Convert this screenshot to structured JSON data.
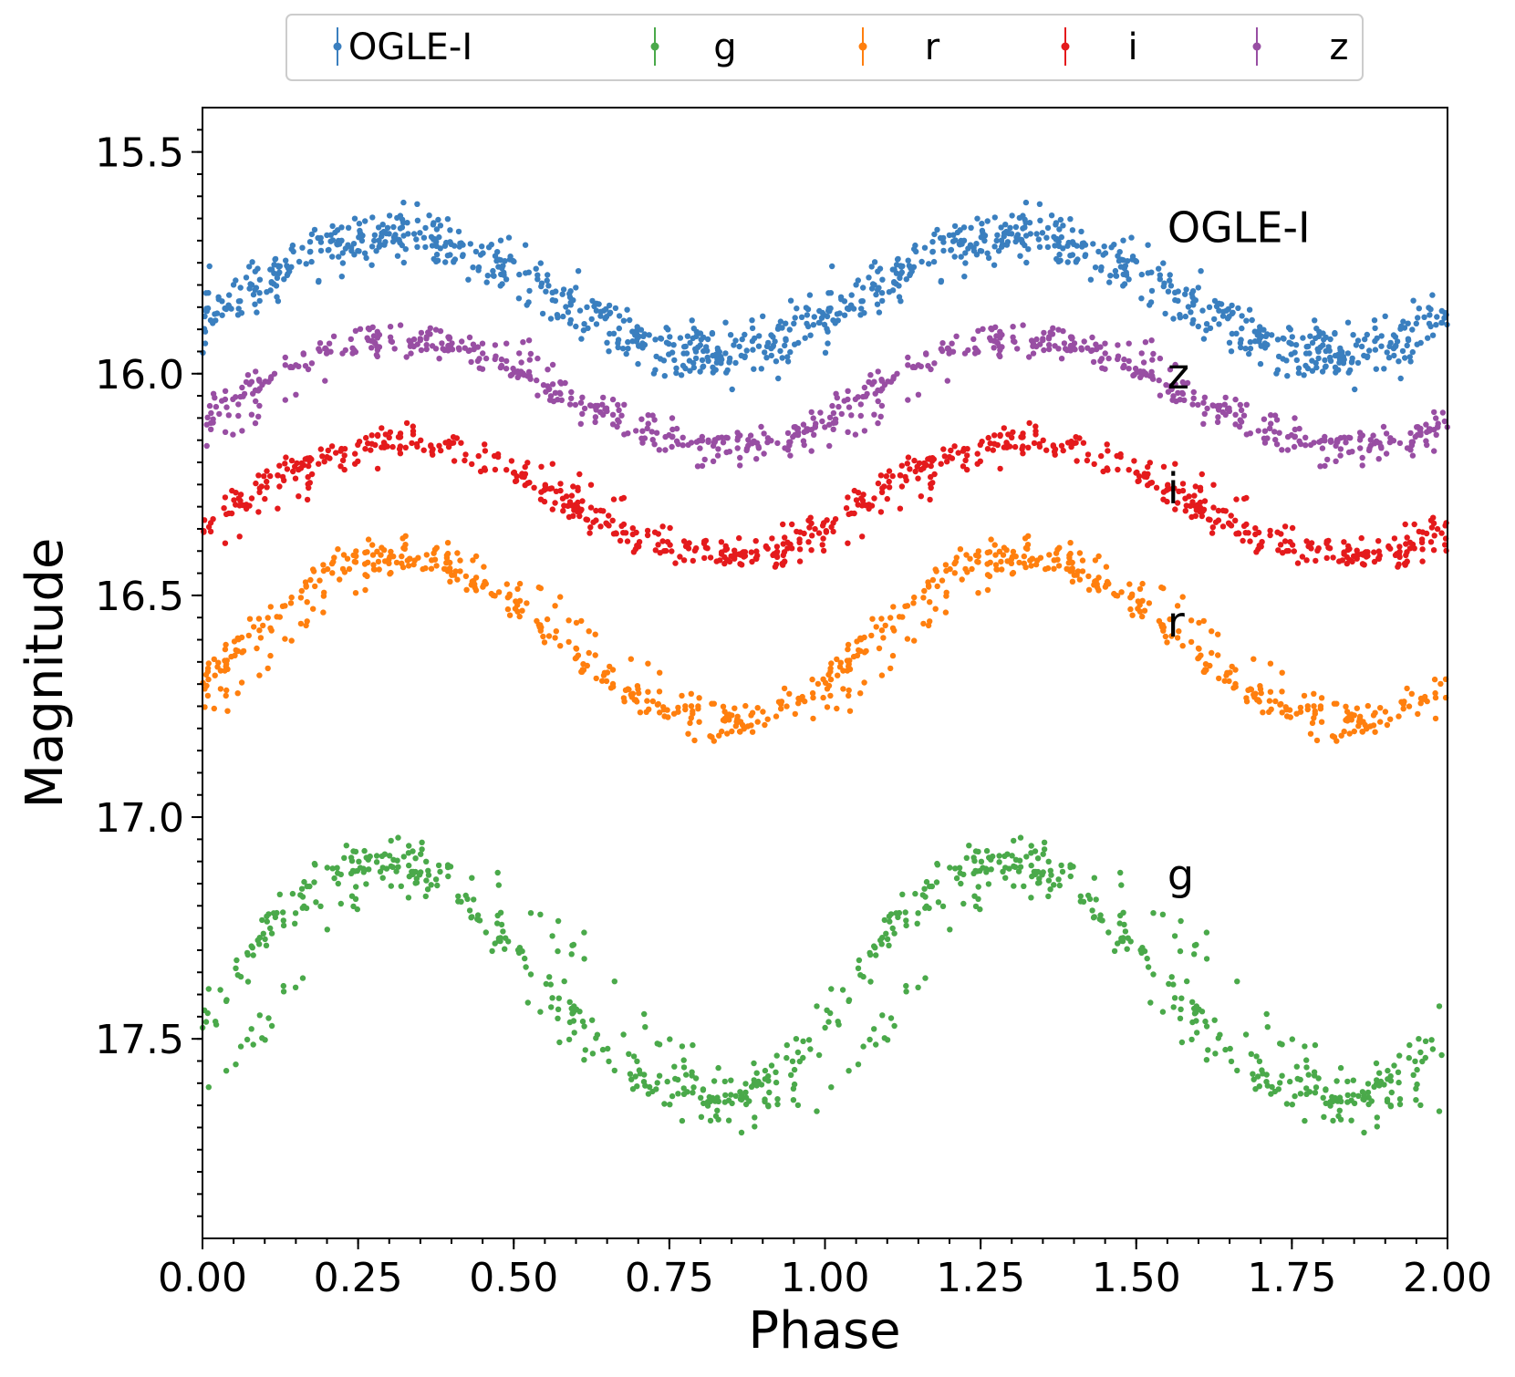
{
  "chart_data": {
    "type": "scatter",
    "title": "",
    "xlabel": "Phase",
    "ylabel": "Magnitude",
    "xlim": [
      0.0,
      2.0
    ],
    "ylim": [
      17.95,
      15.4
    ],
    "y_inverted": true,
    "xticks": [
      "0.00",
      "0.25",
      "0.50",
      "0.75",
      "1.00",
      "1.25",
      "1.50",
      "1.75",
      "2.00"
    ],
    "yticks": [
      "15.5",
      "16.0",
      "16.5",
      "17.0",
      "17.5"
    ],
    "legend_position": "top-center-outside",
    "series": [
      {
        "name": "OGLE-I",
        "color": "#3a7fbf",
        "mean": 15.82,
        "amplitude": 0.135,
        "max_phase": 0.3,
        "min_phase": 0.82,
        "scatter": 0.03,
        "peak_shift": 0.0
      },
      {
        "name": "g",
        "color": "#4aa94a",
        "mean": 17.37,
        "amplitude": 0.27,
        "max_phase": 0.27,
        "min_phase": 0.82,
        "scatter": 0.03,
        "peak_shift": 0.1
      },
      {
        "name": "r",
        "color": "#ff7f0e",
        "mean": 16.6,
        "amplitude": 0.19,
        "max_phase": 0.3,
        "min_phase": 0.84,
        "scatter": 0.018,
        "peak_shift": 0.07
      },
      {
        "name": "i",
        "color": "#e41a1c",
        "mean": 16.28,
        "amplitude": 0.13,
        "max_phase": 0.3,
        "min_phase": 0.84,
        "scatter": 0.018,
        "peak_shift": 0.07
      },
      {
        "name": "z",
        "color": "#984ea3",
        "mean": 16.04,
        "amplitude": 0.125,
        "max_phase": 0.3,
        "min_phase": 0.84,
        "scatter": 0.018,
        "peak_shift": 0.07
      }
    ],
    "band_labels": [
      {
        "text": "OGLE-I",
        "x": 1.55,
        "y": 15.67
      },
      {
        "text": "z",
        "x": 1.55,
        "y": 16.0
      },
      {
        "text": "i",
        "x": 1.55,
        "y": 16.26
      },
      {
        "text": "r",
        "x": 1.55,
        "y": 16.56
      },
      {
        "text": "g",
        "x": 1.55,
        "y": 17.13
      }
    ]
  }
}
